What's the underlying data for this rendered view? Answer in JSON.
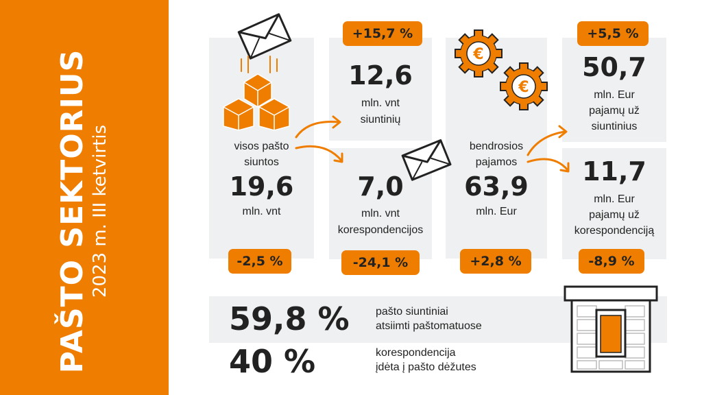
{
  "sidebar": {
    "title": "PAŠTO SEKTORIUS",
    "subtitle": "2023 m. III ketvirtis"
  },
  "colors": {
    "accent": "#ef7d00",
    "panel": "#eef0f1",
    "text": "#222222",
    "background": "#ffffff"
  },
  "all_items": {
    "label_line1": "visos pašto",
    "label_line2": "siuntos",
    "value": "19,6",
    "unit": "mln. vnt",
    "change": "-2,5 %"
  },
  "parcels": {
    "change": "+15,7 %",
    "value": "12,6",
    "unit": "mln. vnt",
    "label": "siuntinių"
  },
  "correspondence": {
    "value": "7,0",
    "unit": "mln. vnt",
    "label": "korespondencijos",
    "change": "-24,1 %"
  },
  "revenue_total": {
    "label_line1": "bendrosios",
    "label_line2": "pajamos",
    "value": "63,9",
    "unit": "mln. Eur",
    "change": "+2,8 %"
  },
  "revenue_parcels": {
    "change": "+5,5 %",
    "value": "50,7",
    "line1": "mln. Eur",
    "line2": "pajamų už",
    "line3": "siuntinius"
  },
  "revenue_correspondence": {
    "value": "11,7",
    "line1": "mln. Eur",
    "line2": "pajamų už",
    "line3": "korespondenciją",
    "change": "-8,9 %"
  },
  "bottom": {
    "stat1_value": "59,8 %",
    "stat1_line1": "pašto siuntiniai",
    "stat1_line2": "atsiimti paštomatuose",
    "stat2_value": "40 %",
    "stat2_line1": "korespondencija",
    "stat2_line2": "įdėta į pašto dėžutes"
  },
  "icons": [
    "envelope-icon",
    "boxes-icon",
    "gears-euro-icon",
    "envelope-icon",
    "parcel-locker-icon",
    "arrow-icon"
  ]
}
